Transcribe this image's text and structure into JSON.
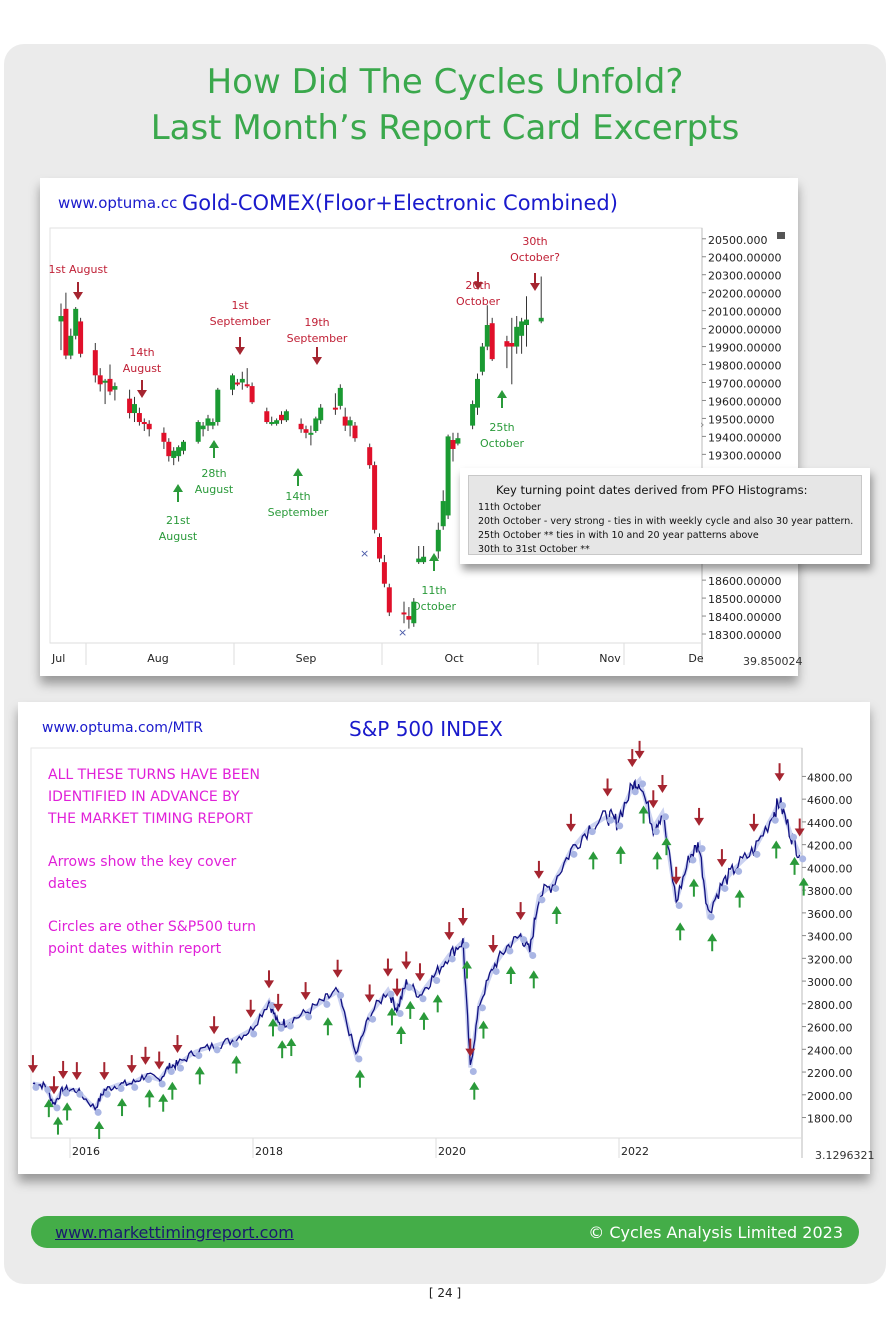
{
  "page": {
    "title_line1": "How Did The Cycles Unfold?",
    "title_line2": "Last Month’s Report Card Excerpts",
    "page_number": "[ 24 ]"
  },
  "footer": {
    "link": "www.markettimingreport.com",
    "copyright": "© Cycles Analysis Limited 2023",
    "bar_color": "#44ad48"
  },
  "colors": {
    "up": "#1a9a32",
    "down": "#e0102a",
    "red_arrow": "#a52530",
    "green_arrow": "#2a9a3a",
    "title_green": "#3aa84c",
    "chart_blue": "#1a1acc",
    "magenta": "#e020d8",
    "spx_line": "#101080"
  },
  "info_box": {
    "heading": "Key turning point dates derived from PFO Histograms:",
    "lines": [
      "11th October",
      "20th October - very strong - ties in with weekly cycle and also 30 year pattern.",
      "25th October ** ties in with 10 and 20 year patterns above",
      "30th to 31st October **"
    ]
  },
  "spx_notes": [
    "ALL THESE TURNS HAVE BEEN",
    "IDENTIFIED IN ADVANCE BY",
    "THE MARKET TIMING REPORT",
    "Arrows show the key cover",
    "dates",
    "Circles are other S&P500 turn",
    "point dates within report"
  ],
  "chart_data": [
    {
      "type": "candlestick",
      "site": "www.optuma.cc",
      "title": "Gold-COMEX(Floor+Electronic Combined)",
      "x_tick_labels": [
        "Jul",
        "Aug",
        "Sep",
        "Oct",
        "Nov",
        "De"
      ],
      "y_tick_labels": [
        "20500.000",
        "20400.00000",
        "20300.00000",
        "20200.00000",
        "20100.00000",
        "20000.00000",
        "19900.00000",
        "19800.00000",
        "19700.00000",
        "19600.00000",
        "19500.0000",
        "19400.00000",
        "19300.00000",
        "18600.00000",
        "18500.00000",
        "18400.00000",
        "18300.00000"
      ],
      "ylim": [
        18250,
        20560
      ],
      "corner_label": "39.850024",
      "candles": [
        {
          "d": "07-31",
          "o": 20040,
          "h": 20140,
          "l": 19880,
          "c": 20070
        },
        {
          "d": "08-01",
          "o": 20110,
          "h": 20200,
          "l": 19830,
          "c": 19850
        },
        {
          "d": "08-02",
          "o": 19850,
          "h": 20000,
          "l": 19830,
          "c": 19960
        },
        {
          "d": "08-03",
          "o": 19960,
          "h": 20120,
          "l": 19940,
          "c": 20110
        },
        {
          "d": "08-04",
          "o": 20040,
          "h": 20060,
          "l": 19840,
          "c": 19860
        },
        {
          "d": "08-07",
          "o": 19880,
          "h": 19920,
          "l": 19700,
          "c": 19740
        },
        {
          "d": "08-08",
          "o": 19740,
          "h": 19780,
          "l": 19650,
          "c": 19690
        },
        {
          "d": "08-09",
          "o": 19700,
          "h": 19720,
          "l": 19580,
          "c": 19710
        },
        {
          "d": "08-10",
          "o": 19720,
          "h": 19800,
          "l": 19630,
          "c": 19650
        },
        {
          "d": "08-11",
          "o": 19660,
          "h": 19700,
          "l": 19600,
          "c": 19680
        },
        {
          "d": "08-14",
          "o": 19610,
          "h": 19660,
          "l": 19500,
          "c": 19530
        },
        {
          "d": "08-15",
          "o": 19530,
          "h": 19620,
          "l": 19480,
          "c": 19580
        },
        {
          "d": "08-16",
          "o": 19530,
          "h": 19560,
          "l": 19460,
          "c": 19480
        },
        {
          "d": "08-17",
          "o": 19480,
          "h": 19500,
          "l": 19430,
          "c": 19470
        },
        {
          "d": "08-18",
          "o": 19470,
          "h": 19490,
          "l": 19400,
          "c": 19440
        },
        {
          "d": "08-21",
          "o": 19420,
          "h": 19450,
          "l": 19330,
          "c": 19370
        },
        {
          "d": "08-22",
          "o": 19370,
          "h": 19390,
          "l": 19260,
          "c": 19290
        },
        {
          "d": "08-23",
          "o": 19280,
          "h": 19340,
          "l": 19240,
          "c": 19320
        },
        {
          "d": "08-24",
          "o": 19290,
          "h": 19350,
          "l": 19260,
          "c": 19340
        },
        {
          "d": "08-25",
          "o": 19320,
          "h": 19380,
          "l": 19300,
          "c": 19370
        },
        {
          "d": "08-28",
          "o": 19370,
          "h": 19490,
          "l": 19360,
          "c": 19480
        },
        {
          "d": "08-29",
          "o": 19440,
          "h": 19480,
          "l": 19400,
          "c": 19460
        },
        {
          "d": "08-30",
          "o": 19460,
          "h": 19520,
          "l": 19430,
          "c": 19500
        },
        {
          "d": "08-31",
          "o": 19460,
          "h": 19500,
          "l": 19440,
          "c": 19480
        },
        {
          "d": "09-01",
          "o": 19480,
          "h": 19670,
          "l": 19460,
          "c": 19660
        },
        {
          "d": "09-04",
          "o": 19660,
          "h": 19750,
          "l": 19630,
          "c": 19740
        },
        {
          "d": "09-05",
          "o": 19700,
          "h": 19720,
          "l": 19680,
          "c": 19690
        },
        {
          "d": "09-06",
          "o": 19700,
          "h": 19760,
          "l": 19660,
          "c": 19720
        },
        {
          "d": "09-07",
          "o": 19690,
          "h": 19780,
          "l": 19670,
          "c": 19680
        },
        {
          "d": "09-08",
          "o": 19680,
          "h": 19700,
          "l": 19580,
          "c": 19590
        },
        {
          "d": "09-11",
          "o": 19540,
          "h": 19560,
          "l": 19470,
          "c": 19480
        },
        {
          "d": "09-12",
          "o": 19480,
          "h": 19510,
          "l": 19460,
          "c": 19480
        },
        {
          "d": "09-13",
          "o": 19470,
          "h": 19500,
          "l": 19460,
          "c": 19490
        },
        {
          "d": "09-14",
          "o": 19520,
          "h": 19540,
          "l": 19470,
          "c": 19490
        },
        {
          "d": "09-15",
          "o": 19490,
          "h": 19550,
          "l": 19480,
          "c": 19540
        },
        {
          "d": "09-18",
          "o": 19470,
          "h": 19500,
          "l": 19420,
          "c": 19440
        },
        {
          "d": "09-19",
          "o": 19440,
          "h": 19460,
          "l": 19390,
          "c": 19420
        },
        {
          "d": "09-20",
          "o": 19420,
          "h": 19460,
          "l": 19350,
          "c": 19420
        },
        {
          "d": "09-21",
          "o": 19430,
          "h": 19510,
          "l": 19420,
          "c": 19500
        },
        {
          "d": "09-22",
          "o": 19490,
          "h": 19580,
          "l": 19470,
          "c": 19560
        },
        {
          "d": "09-25",
          "o": 19560,
          "h": 19640,
          "l": 19520,
          "c": 19550
        },
        {
          "d": "09-26",
          "o": 19570,
          "h": 19690,
          "l": 19550,
          "c": 19670
        },
        {
          "d": "09-27",
          "o": 19510,
          "h": 19560,
          "l": 19430,
          "c": 19460
        },
        {
          "d": "09-28",
          "o": 19460,
          "h": 19510,
          "l": 19400,
          "c": 19490
        },
        {
          "d": "09-29",
          "o": 19460,
          "h": 19480,
          "l": 19370,
          "c": 19390
        },
        {
          "d": "10-02",
          "o": 19340,
          "h": 19360,
          "l": 19220,
          "c": 19240
        },
        {
          "d": "10-03",
          "o": 19240,
          "h": 19260,
          "l": 18860,
          "c": 18880
        },
        {
          "d": "10-04",
          "o": 18840,
          "h": 18860,
          "l": 18700,
          "c": 18720
        },
        {
          "d": "10-05",
          "o": 18700,
          "h": 18740,
          "l": 18560,
          "c": 18580
        },
        {
          "d": "10-06",
          "o": 18560,
          "h": 18580,
          "l": 18400,
          "c": 18420
        },
        {
          "d": "10-09",
          "o": 18420,
          "h": 18480,
          "l": 18360,
          "c": 18410
        },
        {
          "d": "10-10",
          "o": 18400,
          "h": 18450,
          "l": 18330,
          "c": 18380
        },
        {
          "d": "10-11",
          "o": 18360,
          "h": 18500,
          "l": 18340,
          "c": 18480
        },
        {
          "d": "10-12",
          "o": 18700,
          "h": 18790,
          "l": 18690,
          "c": 18720
        },
        {
          "d": "10-13",
          "o": 18700,
          "h": 18790,
          "l": 18690,
          "c": 18730
        },
        {
          "d": "10-16",
          "o": 18760,
          "h": 18920,
          "l": 18720,
          "c": 18880
        },
        {
          "d": "10-17",
          "o": 18900,
          "h": 19100,
          "l": 18880,
          "c": 19040
        },
        {
          "d": "10-18",
          "o": 18960,
          "h": 19410,
          "l": 18940,
          "c": 19400
        },
        {
          "d": "10-19",
          "o": 19380,
          "h": 19420,
          "l": 19260,
          "c": 19330
        },
        {
          "d": "10-20",
          "o": 19360,
          "h": 19420,
          "l": 19350,
          "c": 19390
        },
        {
          "d": "10-23",
          "o": 19460,
          "h": 19600,
          "l": 19440,
          "c": 19580
        },
        {
          "d": "10-24",
          "o": 19560,
          "h": 19750,
          "l": 19520,
          "c": 19720
        },
        {
          "d": "10-25",
          "o": 19760,
          "h": 19920,
          "l": 19740,
          "c": 19900
        },
        {
          "d": "10-26",
          "o": 19900,
          "h": 20130,
          "l": 19880,
          "c": 20020
        },
        {
          "d": "10-27",
          "o": 20030,
          "h": 20060,
          "l": 19820,
          "c": 19830
        },
        {
          "d": "10-30",
          "o": 19930,
          "h": 19960,
          "l": 19780,
          "c": 19900
        },
        {
          "d": "10-31",
          "o": 19920,
          "h": 20060,
          "l": 19690,
          "c": 19900
        },
        {
          "d": "11-01",
          "o": 19900,
          "h": 20070,
          "l": 19860,
          "c": 20010
        },
        {
          "d": "11-02",
          "o": 19960,
          "h": 20060,
          "l": 19860,
          "c": 20040
        },
        {
          "d": "11-03",
          "o": 20020,
          "h": 20180,
          "l": 19900,
          "c": 20050
        },
        {
          "d": "11-06",
          "o": 20040,
          "h": 20290,
          "l": 20030,
          "c": 20060
        }
      ],
      "annotations": [
        {
          "color": "red",
          "lines": [
            "1st August"
          ],
          "dir": "down"
        },
        {
          "color": "red",
          "lines": [
            "14th",
            "August"
          ],
          "dir": "down"
        },
        {
          "color": "red",
          "lines": [
            "1st",
            "September"
          ],
          "dir": "down"
        },
        {
          "color": "red",
          "lines": [
            "19th",
            "September"
          ],
          "dir": "down"
        },
        {
          "color": "red",
          "lines": [
            "20th",
            "October"
          ],
          "dir": "down"
        },
        {
          "color": "red",
          "lines": [
            "30th",
            "October?"
          ],
          "dir": "down"
        },
        {
          "color": "green",
          "lines": [
            "21st",
            "August"
          ],
          "dir": "up"
        },
        {
          "color": "green",
          "lines": [
            "28th",
            "August"
          ],
          "dir": "up"
        },
        {
          "color": "green",
          "lines": [
            "14th",
            "September"
          ],
          "dir": "up"
        },
        {
          "color": "green",
          "lines": [
            "11th",
            "October"
          ],
          "dir": "up"
        },
        {
          "color": "green",
          "lines": [
            "25th",
            "October"
          ],
          "dir": "up"
        }
      ]
    },
    {
      "type": "line",
      "site": "www.optuma.com/MTR",
      "title": "S&P 500 INDEX",
      "x_tick_labels": [
        "2016",
        "2018",
        "2020",
        "2022"
      ],
      "y_tick_labels": [
        "4800.00",
        "4600.00",
        "4400.00",
        "4200.00",
        "4000.00",
        "3800.00",
        "3600.00",
        "3400.00",
        "3200.00",
        "3000.00",
        "2800.00",
        "2600.00",
        "2400.00",
        "2200.00",
        "2000.00",
        "1800.00"
      ],
      "ylim": [
        1620,
        5050
      ],
      "corner_label": "3.1296321",
      "series": [
        {
          "x": [
            2015.42,
            2015.55,
            2015.65,
            2015.75,
            2015.9,
            2016.1,
            2016.2,
            2016.35,
            2016.5,
            2016.65,
            2016.8,
            2016.9,
            2017.0,
            2017.2,
            2017.4,
            2017.6,
            2017.8,
            2018.0,
            2018.1,
            2018.2,
            2018.4,
            2018.6,
            2018.75,
            2018.95,
            2019.1,
            2019.3,
            2019.4,
            2019.5,
            2019.65,
            2019.8,
            2019.97,
            2020.12,
            2020.2,
            2020.3,
            2020.45,
            2020.6,
            2020.75,
            2020.85,
            2020.95,
            2021.1,
            2021.3,
            2021.5,
            2021.7,
            2021.8,
            2021.97,
            2022.05,
            2022.2,
            2022.3,
            2022.45,
            2022.6,
            2022.7,
            2022.8,
            2022.95,
            2023.1,
            2023.3,
            2023.5,
            2023.58,
            2023.7,
            2023.8
          ],
          "values": [
            2100,
            2080,
            1920,
            2050,
            2040,
            1880,
            2040,
            2090,
            2100,
            2170,
            2130,
            2240,
            2270,
            2380,
            2430,
            2480,
            2570,
            2820,
            2620,
            2640,
            2720,
            2830,
            2910,
            2350,
            2700,
            2920,
            2750,
            2980,
            2880,
            3040,
            3230,
            3350,
            2240,
            2800,
            3120,
            3300,
            3400,
            3260,
            3750,
            3850,
            4150,
            4350,
            4450,
            4400,
            4700,
            4770,
            4350,
            4480,
            3700,
            4100,
            4200,
            3600,
            3850,
            4000,
            4150,
            4450,
            4580,
            4300,
            4110
          ]
        }
      ]
    }
  ]
}
